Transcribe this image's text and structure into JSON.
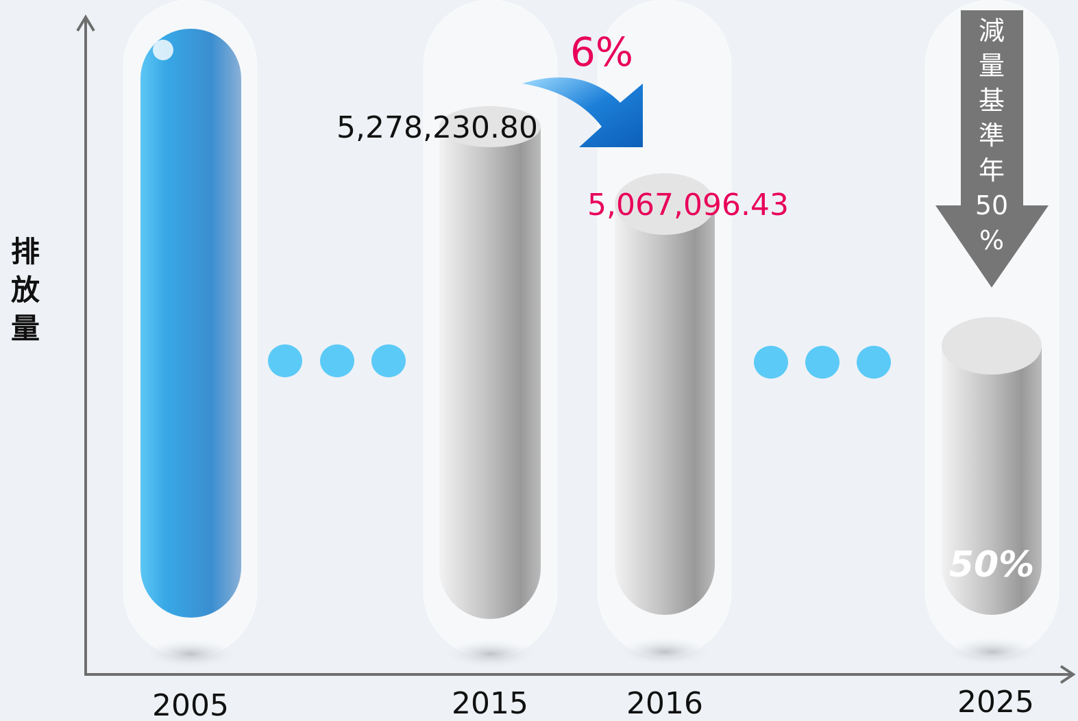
{
  "y_axis_label": "排放量",
  "columns": [
    {
      "year": "2005"
    },
    {
      "year": "2015",
      "value_label": "5,278,230.80"
    },
    {
      "year": "2016",
      "value_label": "5,067,096.43"
    },
    {
      "year": "2025",
      "badge": "50%"
    }
  ],
  "change_label": "6%",
  "target_arrow_label": "減量基準年50%"
}
